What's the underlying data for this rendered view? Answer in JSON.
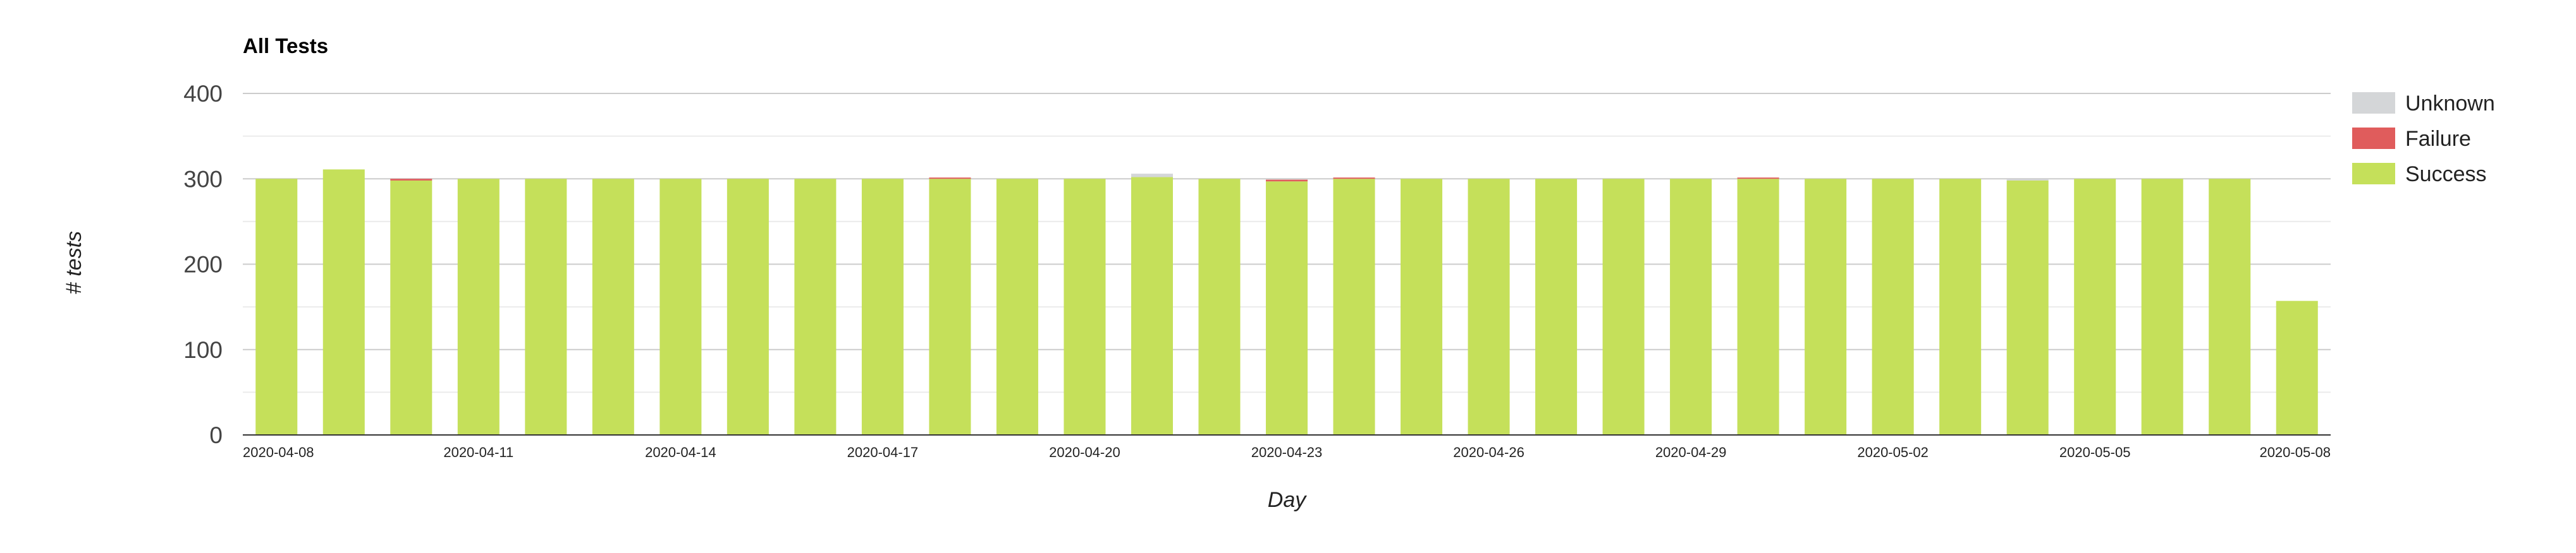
{
  "chart_data": {
    "type": "bar",
    "stacked": true,
    "title": "All Tests",
    "xlabel": "Day",
    "ylabel": "# tests",
    "ylim": [
      0,
      400
    ],
    "yticks": [
      0,
      100,
      200,
      300,
      400
    ],
    "grid": true,
    "legend_position": "right",
    "categories": [
      "2020-04-08",
      "2020-04-09",
      "2020-04-10",
      "2020-04-11",
      "2020-04-12",
      "2020-04-13",
      "2020-04-14",
      "2020-04-15",
      "2020-04-16",
      "2020-04-17",
      "2020-04-18",
      "2020-04-19",
      "2020-04-20",
      "2020-04-21",
      "2020-04-22",
      "2020-04-23",
      "2020-04-24",
      "2020-04-25",
      "2020-04-26",
      "2020-04-27",
      "2020-04-28",
      "2020-04-29",
      "2020-04-30",
      "2020-05-01",
      "2020-05-02",
      "2020-05-03",
      "2020-05-04",
      "2020-05-05",
      "2020-05-06",
      "2020-05-07",
      "2020-05-08"
    ],
    "x_tick_labels": [
      "2020-04-08",
      "2020-04-11",
      "2020-04-14",
      "2020-04-17",
      "2020-04-20",
      "2020-04-23",
      "2020-04-26",
      "2020-04-29",
      "2020-05-02",
      "2020-05-05",
      "2020-05-08"
    ],
    "series": [
      {
        "name": "Success",
        "color": "#c5e05a",
        "values": [
          300,
          311,
          298,
          300,
          300,
          300,
          300,
          300,
          300,
          300,
          300,
          300,
          300,
          302,
          300,
          297,
          300,
          300,
          300,
          300,
          300,
          300,
          300,
          300,
          300,
          300,
          298,
          300,
          300,
          300,
          157
        ]
      },
      {
        "name": "Failure",
        "color": "#e05c5c",
        "values": [
          0,
          0,
          2,
          0,
          0,
          0,
          0,
          0,
          0,
          0,
          1,
          0,
          0,
          0,
          0,
          2,
          1,
          0,
          0,
          0,
          0,
          0,
          1,
          0,
          0,
          0,
          0,
          0,
          0,
          0,
          0
        ]
      },
      {
        "name": "Unknown",
        "color": "#d4d6d8",
        "values": [
          0,
          0,
          0,
          0,
          0,
          0,
          0,
          0,
          0,
          0,
          0,
          0,
          0,
          4,
          0,
          0,
          0,
          0,
          0,
          0,
          0,
          0,
          0,
          0,
          0,
          0,
          1,
          0,
          0,
          0,
          0
        ]
      }
    ],
    "legend_order": [
      "Unknown",
      "Failure",
      "Success"
    ]
  }
}
